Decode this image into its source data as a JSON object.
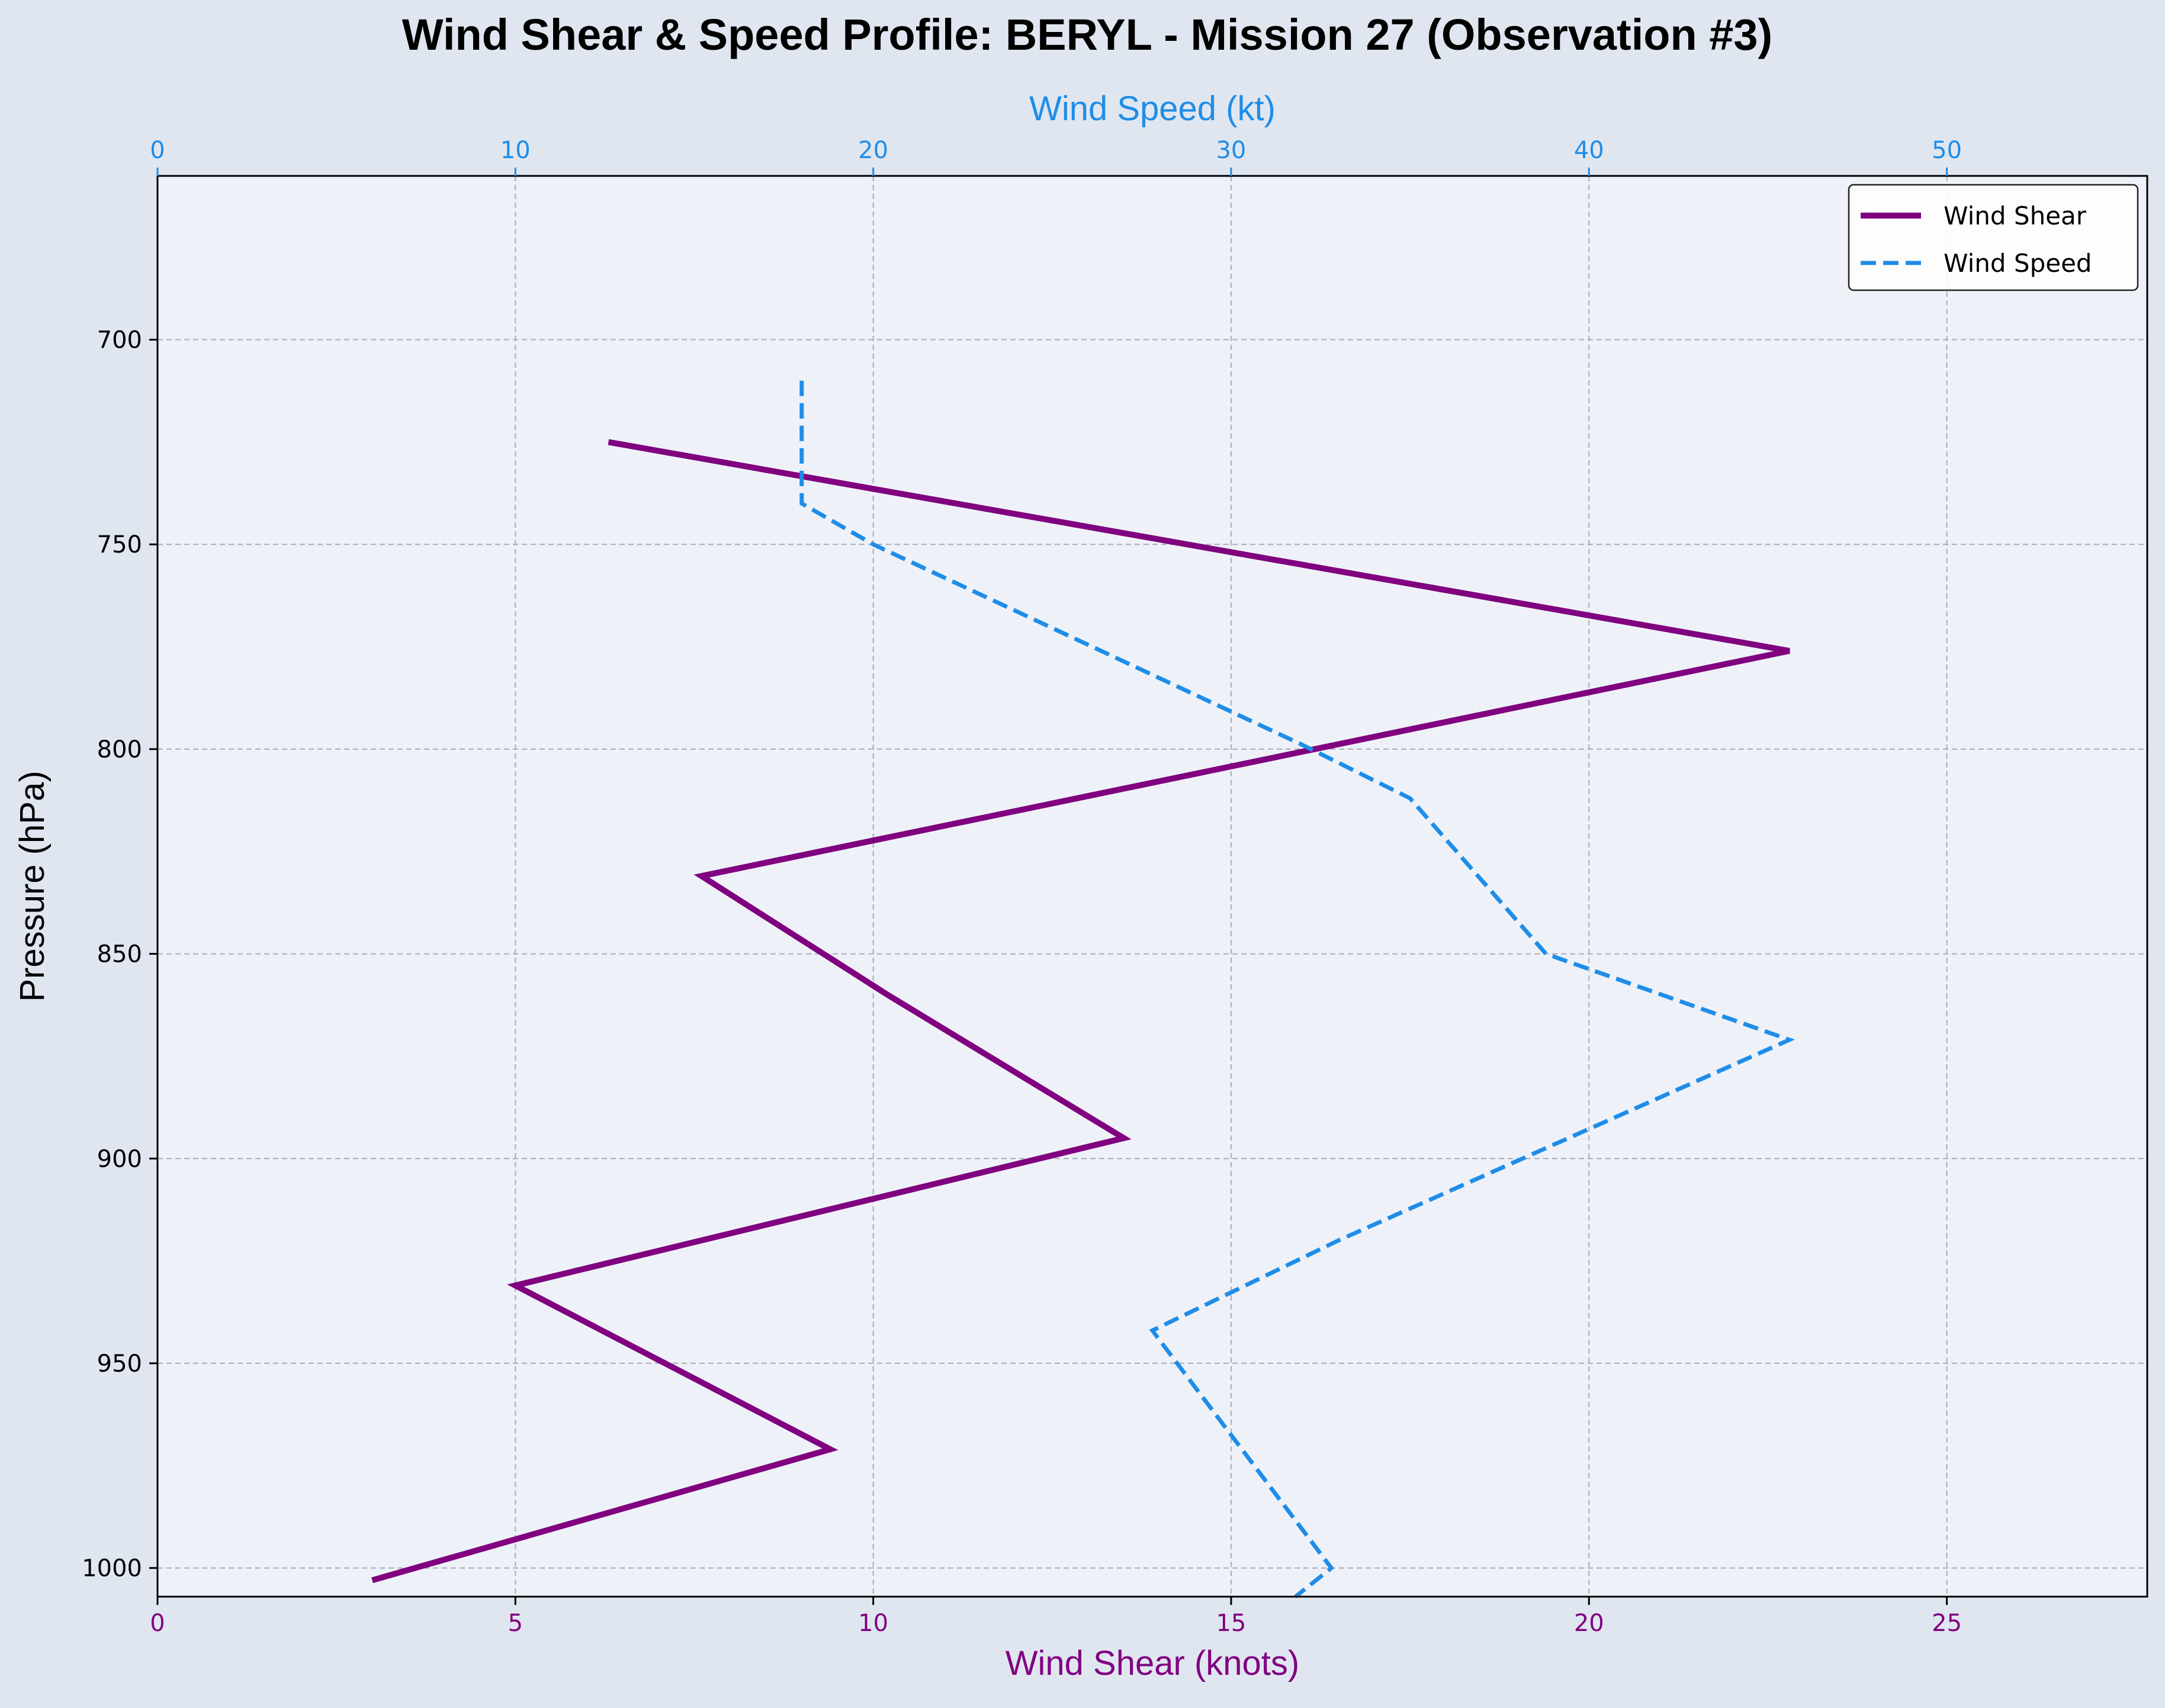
{
  "chart_data": {
    "type": "line",
    "title": "Wind Shear & Speed Profile: BERYL - Mission 27 (Observation #3)",
    "ylabel": "Pressure (hPa)",
    "y_axis": {
      "ticks": [
        700,
        750,
        800,
        850,
        900,
        950,
        1000
      ],
      "range": [
        660,
        1007
      ],
      "inverted": true
    },
    "x_bottom": {
      "label": "Wind Shear (knots)",
      "ticks": [
        0,
        5,
        10,
        15,
        20,
        25
      ],
      "range": [
        0,
        27.8
      ],
      "color": "#800080"
    },
    "x_top": {
      "label": "Wind Speed (kt)",
      "ticks": [
        0,
        10,
        20,
        30,
        40,
        50
      ],
      "range": [
        0,
        55.6
      ],
      "color": "#1f8de8"
    },
    "grid": true,
    "legend": {
      "placement": "top-right",
      "entries": [
        "Wind Shear",
        "Wind Speed"
      ]
    },
    "series": [
      {
        "name": "Wind Shear",
        "axis": "bottom",
        "color": "#800080",
        "style": "solid",
        "x": [
          6.3,
          22.8,
          7.6,
          10.2,
          13.5,
          5.0,
          9.4,
          3.0
        ],
        "y": [
          725,
          776,
          831,
          860,
          895,
          931,
          971,
          1003
        ]
      },
      {
        "name": "Wind Speed",
        "axis": "top",
        "color": "#1f8de8",
        "style": "dashed",
        "x": [
          18.0,
          18.0,
          20.0,
          32.0,
          35.0,
          38.8,
          45.6,
          33.0,
          27.8,
          32.8,
          31.8
        ],
        "y": [
          710,
          740,
          750,
          799,
          812,
          850,
          871,
          920,
          942,
          1000,
          1007
        ]
      }
    ]
  }
}
